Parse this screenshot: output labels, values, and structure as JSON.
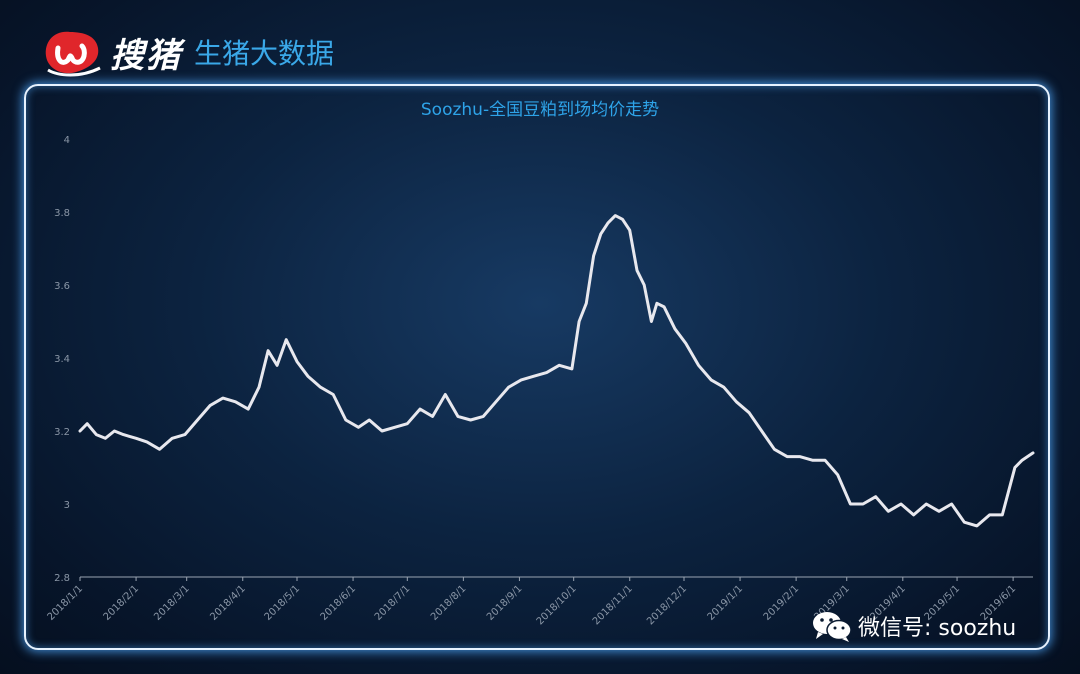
{
  "brand": {
    "name": "搜猪",
    "subtitle": "生猪大数据"
  },
  "footer": {
    "wechat": "微信号: soozhu"
  },
  "colors": {
    "accent": "#2ea3e8",
    "line": "#e8e8ee",
    "logo": "#e0262b"
  },
  "chart_data": {
    "type": "line",
    "title": "Soozhu-全国豆粕到场均价走势",
    "xlabel": "",
    "ylabel": "",
    "ylim": [
      2.8,
      4
    ],
    "yticks": [
      2.8,
      3,
      3.2,
      3.4,
      3.6,
      3.8,
      4
    ],
    "ytick_labels": [
      "2.8",
      "3",
      "3.2",
      "3.4",
      "3.6",
      "3.8",
      "4"
    ],
    "xticks": [
      "2018/1/1",
      "2018/2/1",
      "2018/3/1",
      "2018/4/1",
      "2018/5/1",
      "2018/6/1",
      "2018/7/1",
      "2018/8/1",
      "2018/9/1",
      "2018/10/1",
      "2018/11/1",
      "2018/12/1",
      "2019/1/1",
      "2019/2/1",
      "2019/3/1",
      "2019/4/1",
      "2019/5/1",
      "2019/6/1"
    ],
    "xlim": [
      "2018/1/1",
      "2019/6/12"
    ],
    "grid": false,
    "series": [
      {
        "x": [
          "2018/1/1",
          "2018/1/5",
          "2018/1/10",
          "2018/1/15",
          "2018/1/20",
          "2018/1/25",
          "2018/2/1",
          "2018/2/7",
          "2018/2/14",
          "2018/2/21",
          "2018/2/28",
          "2018/3/7",
          "2018/3/14",
          "2018/3/21",
          "2018/3/28",
          "2018/4/4",
          "2018/4/10",
          "2018/4/15",
          "2018/4/20",
          "2018/4/25",
          "2018/5/1",
          "2018/5/7",
          "2018/5/14",
          "2018/5/21",
          "2018/5/28",
          "2018/6/4",
          "2018/6/10",
          "2018/6/17",
          "2018/6/24",
          "2018/7/1",
          "2018/7/8",
          "2018/7/15",
          "2018/7/22",
          "2018/7/29",
          "2018/8/5",
          "2018/8/12",
          "2018/8/19",
          "2018/8/26",
          "2018/9/2",
          "2018/9/9",
          "2018/9/16",
          "2018/9/23",
          "2018/9/30",
          "2018/10/4",
          "2018/10/8",
          "2018/10/12",
          "2018/10/16",
          "2018/10/20",
          "2018/10/24",
          "2018/10/28",
          "2018/11/1",
          "2018/11/5",
          "2018/11/9",
          "2018/11/13",
          "2018/11/16",
          "2018/11/20",
          "2018/11/26",
          "2018/12/2",
          "2018/12/9",
          "2018/12/16",
          "2018/12/23",
          "2018/12/30",
          "2019/1/6",
          "2019/1/13",
          "2019/1/20",
          "2019/1/27",
          "2019/2/3",
          "2019/2/10",
          "2019/2/17",
          "2019/2/24",
          "2019/3/3",
          "2019/3/10",
          "2019/3/17",
          "2019/3/24",
          "2019/3/31",
          "2019/4/7",
          "2019/4/14",
          "2019/4/21",
          "2019/4/28",
          "2019/5/5",
          "2019/5/12",
          "2019/5/19",
          "2019/5/26",
          "2019/6/2",
          "2019/6/6",
          "2019/6/12"
        ],
        "values": [
          3.2,
          3.22,
          3.19,
          3.18,
          3.2,
          3.19,
          3.18,
          3.17,
          3.15,
          3.18,
          3.19,
          3.23,
          3.27,
          3.29,
          3.28,
          3.26,
          3.32,
          3.42,
          3.38,
          3.45,
          3.39,
          3.35,
          3.32,
          3.3,
          3.23,
          3.21,
          3.23,
          3.2,
          3.21,
          3.22,
          3.26,
          3.24,
          3.3,
          3.24,
          3.23,
          3.24,
          3.28,
          3.32,
          3.34,
          3.35,
          3.36,
          3.38,
          3.37,
          3.5,
          3.55,
          3.68,
          3.74,
          3.77,
          3.79,
          3.78,
          3.75,
          3.64,
          3.6,
          3.5,
          3.55,
          3.54,
          3.48,
          3.44,
          3.38,
          3.34,
          3.32,
          3.28,
          3.25,
          3.2,
          3.15,
          3.13,
          3.13,
          3.12,
          3.12,
          3.08,
          3.0,
          3.0,
          3.02,
          2.98,
          3.0,
          2.97,
          3.0,
          2.98,
          3.0,
          2.95,
          2.94,
          2.97,
          2.97,
          3.1,
          3.12,
          3.14
        ]
      }
    ]
  }
}
